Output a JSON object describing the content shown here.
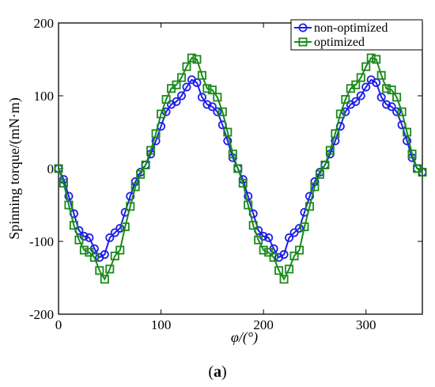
{
  "chart_data": {
    "type": "line",
    "title": "",
    "xlabel": "φ/(°)",
    "ylabel": "Spinning torque/(mN·m)",
    "xlim": [
      0,
      355
    ],
    "ylim": [
      -200,
      200
    ],
    "xticks": [
      0,
      100,
      200,
      300
    ],
    "yticks": [
      -200,
      -100,
      0,
      100,
      200
    ],
    "legend_position": "top-right",
    "panel_label": "(a)",
    "panel_label_parts": {
      "open": "(",
      "letter": "a",
      "close": ")"
    },
    "x": [
      0,
      5,
      10,
      15,
      20,
      25,
      30,
      35,
      40,
      45,
      50,
      55,
      60,
      65,
      70,
      75,
      80,
      85,
      90,
      95,
      100,
      105,
      110,
      115,
      120,
      125,
      130,
      135,
      140,
      145,
      150,
      155,
      160,
      165,
      170,
      175,
      180,
      185,
      190,
      195,
      200,
      205,
      210,
      215,
      220,
      225,
      230,
      235,
      240,
      245,
      250,
      255,
      260,
      265,
      270,
      275,
      280,
      285,
      290,
      295,
      300,
      305,
      310,
      315,
      320,
      325,
      330,
      335,
      340,
      345,
      350,
      355
    ],
    "series": [
      {
        "name": "non-optimized",
        "color": "#1f1fe8",
        "marker": "circle",
        "values": [
          0,
          -15,
          -38,
          -62,
          -85,
          -93,
          -95,
          -110,
          -122,
          -118,
          -95,
          -88,
          -82,
          -60,
          -38,
          -18,
          -5,
          5,
          20,
          38,
          58,
          78,
          88,
          92,
          100,
          112,
          122,
          118,
          98,
          88,
          85,
          78,
          60,
          38,
          15,
          0,
          -15,
          -38,
          -62,
          -85,
          -93,
          -95,
          -110,
          -122,
          -118,
          -95,
          -88,
          -82,
          -60,
          -38,
          -18,
          -5,
          5,
          20,
          38,
          58,
          78,
          88,
          92,
          100,
          112,
          122,
          118,
          98,
          88,
          85,
          78,
          60,
          38,
          15,
          0,
          -5
        ]
      },
      {
        "name": "optimized",
        "color": "#1a8a1a",
        "marker": "square",
        "values": [
          0,
          -20,
          -50,
          -78,
          -98,
          -112,
          -115,
          -122,
          -140,
          -152,
          -138,
          -120,
          -112,
          -80,
          -52,
          -25,
          -8,
          5,
          25,
          48,
          75,
          95,
          110,
          115,
          125,
          140,
          152,
          150,
          128,
          110,
          108,
          98,
          78,
          50,
          20,
          0,
          -20,
          -50,
          -78,
          -98,
          -112,
          -115,
          -122,
          -140,
          -152,
          -138,
          -120,
          -112,
          -80,
          -52,
          -25,
          -8,
          5,
          25,
          48,
          75,
          95,
          110,
          115,
          125,
          140,
          152,
          150,
          128,
          110,
          108,
          98,
          78,
          50,
          20,
          0,
          -5
        ]
      }
    ]
  }
}
